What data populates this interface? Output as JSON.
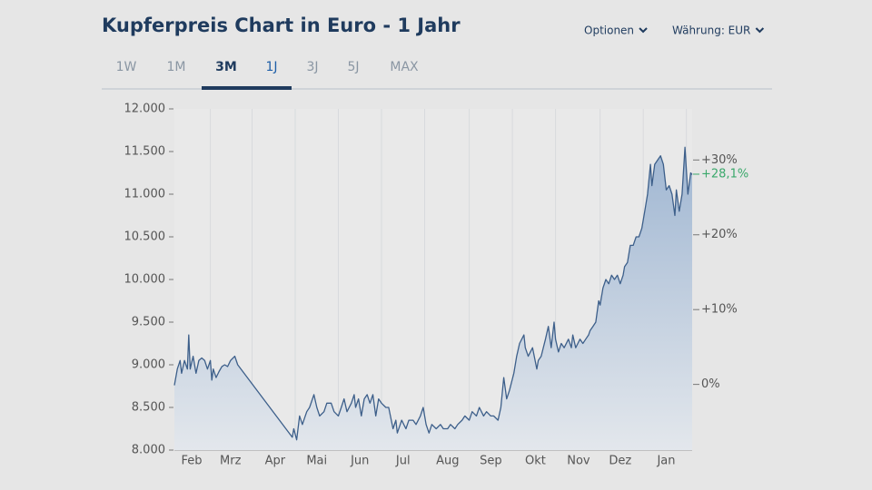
{
  "header": {
    "tabs": [
      "1W",
      "1M",
      "3M",
      "1J",
      "3J",
      "5J",
      "MAX"
    ],
    "selected_tab": 3,
    "underlined_tab": 2,
    "menus": [
      "Optionen",
      "Währung: EUR"
    ]
  },
  "chart_data": {
    "type": "area",
    "title": "Kupferpreis Chart in Euro - 1 Jahr",
    "color": "#3d5f8a",
    "x": [
      0,
      2,
      4,
      5,
      7,
      9,
      10,
      11,
      13,
      15,
      17,
      19,
      21,
      23,
      25,
      26,
      27,
      29,
      31,
      33,
      35,
      37,
      39,
      42,
      44,
      82,
      83,
      85,
      87,
      89,
      92,
      94,
      97,
      99,
      101,
      104,
      106,
      109,
      111,
      114,
      116,
      118,
      120,
      123,
      125,
      126,
      128,
      130,
      132,
      134,
      136,
      138,
      140,
      142,
      144,
      147,
      149,
      152,
      154,
      155,
      158,
      161,
      163,
      166,
      168,
      171,
      173,
      175,
      177,
      179,
      182,
      185,
      187,
      190,
      192,
      195,
      197,
      200,
      202,
      205,
      207,
      210,
      212,
      215,
      217,
      220,
      222,
      225,
      227,
      229,
      231,
      233,
      236,
      238,
      240,
      243,
      244,
      246,
      249,
      252,
      253,
      255,
      258,
      260,
      262,
      264,
      265,
      267,
      269,
      271,
      274,
      276,
      277,
      279,
      282,
      284,
      286,
      288,
      289,
      291,
      293,
      295,
      296,
      298,
      300,
      302,
      304,
      306,
      308,
      310,
      312,
      313,
      315,
      317,
      319,
      321,
      323,
      325,
      327,
      329,
      331,
      332,
      334,
      336,
      338,
      340,
      342,
      344,
      346,
      348,
      349,
      351,
      353,
      355,
      357,
      359,
      360
    ],
    "values": [
      8760,
      8950,
      9050,
      8900,
      9050,
      8950,
      9350,
      8950,
      9100,
      8900,
      9050,
      9080,
      9050,
      8950,
      9050,
      8820,
      8950,
      8850,
      8920,
      8980,
      9000,
      8980,
      9050,
      9100,
      9000,
      8150,
      8250,
      8120,
      8400,
      8300,
      8450,
      8500,
      8650,
      8500,
      8400,
      8450,
      8550,
      8550,
      8450,
      8400,
      8500,
      8600,
      8450,
      8550,
      8650,
      8500,
      8600,
      8400,
      8600,
      8650,
      8550,
      8650,
      8400,
      8600,
      8550,
      8500,
      8500,
      8250,
      8350,
      8200,
      8350,
      8250,
      8350,
      8350,
      8300,
      8400,
      8500,
      8300,
      8200,
      8300,
      8250,
      8300,
      8250,
      8250,
      8300,
      8250,
      8300,
      8350,
      8400,
      8350,
      8450,
      8400,
      8500,
      8400,
      8450,
      8400,
      8400,
      8350,
      8500,
      8850,
      8600,
      8700,
      8900,
      9100,
      9250,
      9350,
      9200,
      9100,
      9200,
      8950,
      9050,
      9100,
      9300,
      9450,
      9200,
      9500,
      9300,
      9150,
      9250,
      9200,
      9300,
      9200,
      9350,
      9200,
      9300,
      9250,
      9300,
      9350,
      9400,
      9450,
      9500,
      9750,
      9700,
      9900,
      10000,
      9950,
      10050,
      10000,
      10050,
      9950,
      10050,
      10150,
      10200,
      10400,
      10400,
      10500,
      10500,
      10600,
      10800,
      11000,
      11350,
      11100,
      11350,
      11400,
      11450,
      11350,
      11050,
      11100,
      11000,
      10750,
      11050,
      10800,
      11000,
      11550,
      11000,
      11250,
      11230
    ],
    "xlim": [
      0,
      360
    ],
    "xticks": [
      {
        "value": 12,
        "label": "Feb"
      },
      {
        "value": 39,
        "label": "Mrz"
      },
      {
        "value": 70,
        "label": "Apr"
      },
      {
        "value": 99,
        "label": "Mai"
      },
      {
        "value": 129,
        "label": "Jun"
      },
      {
        "value": 159,
        "label": "Jul"
      },
      {
        "value": 190,
        "label": "Aug"
      },
      {
        "value": 220,
        "label": "Sep"
      },
      {
        "value": 251,
        "label": "Okt"
      },
      {
        "value": 281,
        "label": "Nov"
      },
      {
        "value": 310,
        "label": "Dez"
      },
      {
        "value": 342,
        "label": "Jan"
      }
    ],
    "xgrid": [
      25,
      54,
      84,
      114,
      144,
      174,
      205,
      235,
      265,
      296,
      326,
      356
    ],
    "ylim": [
      8000,
      12000
    ],
    "yticks": [
      {
        "value": 8000,
        "label": "8.000"
      },
      {
        "value": 8500,
        "label": "8.500"
      },
      {
        "value": 9000,
        "label": "9.000"
      },
      {
        "value": 9500,
        "label": "9.500"
      },
      {
        "value": 10000,
        "label": "10.000"
      },
      {
        "value": 10500,
        "label": "10.500"
      },
      {
        "value": 11000,
        "label": "11.000"
      },
      {
        "value": 11500,
        "label": "11.500"
      },
      {
        "value": 12000,
        "label": "12.000"
      }
    ],
    "y2lim": [
      -8.78,
      36.83
    ],
    "y2ticks": [
      {
        "value": 0,
        "label": "0%"
      },
      {
        "value": 10,
        "label": "+10%"
      },
      {
        "value": 20,
        "label": "+20%"
      },
      {
        "value": 30,
        "label": "+30%"
      }
    ],
    "current_change": {
      "value": 28.1,
      "label": "+28,1%",
      "color": "#3aa86b"
    },
    "grid": true
  }
}
